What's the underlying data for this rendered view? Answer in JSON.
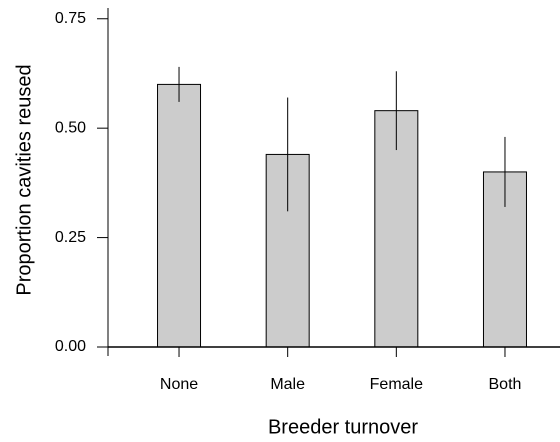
{
  "chart_data": {
    "type": "bar",
    "x_label": "Breeder turnover",
    "y_label": "Proportion cavities reused",
    "categories": [
      "None",
      "Male",
      "Female",
      "Both"
    ],
    "values": [
      0.6,
      0.44,
      0.54,
      0.4
    ],
    "errors": [
      0.04,
      0.13,
      0.09,
      0.08
    ],
    "color": "#cccccc",
    "ylim": [
      0,
      0.77
    ],
    "yticks": [
      {
        "value": 0,
        "label": "0.00"
      },
      {
        "value": 0.25,
        "label": "0.25"
      },
      {
        "value": 0.5,
        "label": "0.50"
      },
      {
        "value": 0.75,
        "label": "0.75"
      }
    ],
    "grid": false
  }
}
